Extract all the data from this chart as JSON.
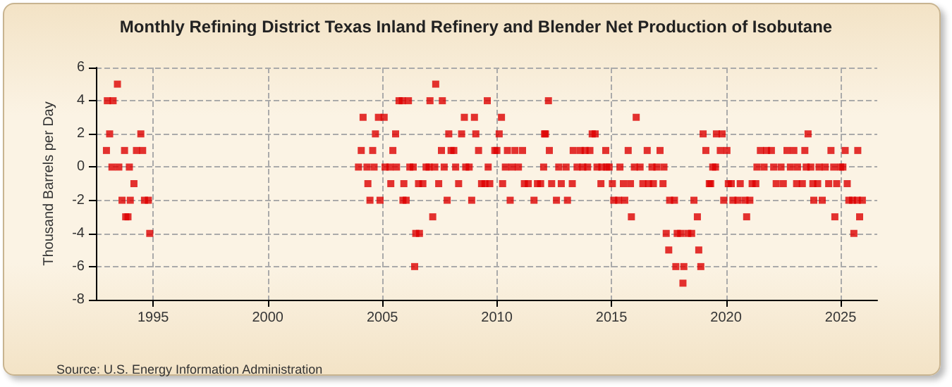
{
  "chart_data": {
    "type": "scatter",
    "title": "Monthly Refining District Texas Inland Refinery and Blender Net Production of Isobutane",
    "ylabel": "Thousand Barrels per Day",
    "annotations": [
      "Source: U.S. Energy Information Administration"
    ],
    "marker": "square",
    "grid": true,
    "xlim": [
      1992.5,
      2026.6
    ],
    "xticks": [
      1995,
      2000,
      2005,
      2010,
      2015,
      2020,
      2025
    ],
    "ylim": [
      -8,
      6
    ],
    "yticks": [
      -8,
      -6,
      -4,
      -2,
      0,
      2,
      4,
      6
    ],
    "series": [
      {
        "color": "#dd0000",
        "x": [
          1992.96,
          1993.0,
          1993.1,
          1993.2,
          1993.25,
          1993.44,
          1993.5,
          1993.64,
          1993.75,
          1993.8,
          1993.9,
          1993.96,
          1994.0,
          1994.16,
          1994.27,
          1994.46,
          1994.54,
          1994.62,
          1994.79,
          1994.85,
          2003.96,
          2004.08,
          2004.16,
          2004.33,
          2004.37,
          2004.46,
          2004.58,
          2004.64,
          2004.7,
          2004.83,
          2004.9,
          2005.08,
          2005.12,
          2005.33,
          2005.37,
          2005.46,
          2005.58,
          2005.62,
          2005.73,
          2005.87,
          2005.9,
          2005.94,
          2006.04,
          2006.14,
          2006.2,
          2006.35,
          2006.41,
          2006.46,
          2006.58,
          2006.62,
          2006.77,
          2006.91,
          2007.04,
          2007.08,
          2007.2,
          2007.29,
          2007.33,
          2007.46,
          2007.58,
          2007.62,
          2007.7,
          2007.83,
          2007.9,
          2008.0,
          2008.12,
          2008.2,
          2008.33,
          2008.46,
          2008.58,
          2008.64,
          2008.79,
          2008.9,
          2009.02,
          2009.08,
          2009.2,
          2009.33,
          2009.48,
          2009.58,
          2009.62,
          2009.69,
          2009.91,
          2010.0,
          2010.1,
          2010.2,
          2010.25,
          2010.37,
          2010.46,
          2010.58,
          2010.66,
          2010.79,
          2010.94,
          2011.12,
          2011.2,
          2011.37,
          2011.62,
          2011.77,
          2011.91,
          2012.04,
          2012.08,
          2012.12,
          2012.25,
          2012.29,
          2012.39,
          2012.6,
          2012.7,
          2012.81,
          2013.02,
          2013.08,
          2013.29,
          2013.33,
          2013.5,
          2013.64,
          2013.75,
          2013.85,
          2013.96,
          2014.06,
          2014.16,
          2014.29,
          2014.37,
          2014.54,
          2014.58,
          2014.75,
          2014.79,
          2014.9,
          2015.04,
          2015.1,
          2015.31,
          2015.37,
          2015.52,
          2015.58,
          2015.73,
          2015.83,
          2015.87,
          2016.0,
          2016.08,
          2016.25,
          2016.37,
          2016.56,
          2016.62,
          2016.77,
          2016.83,
          2016.98,
          2017.12,
          2017.25,
          2017.29,
          2017.39,
          2017.5,
          2017.54,
          2017.75,
          2017.81,
          2017.87,
          2018.02,
          2018.12,
          2018.16,
          2018.33,
          2018.5,
          2018.6,
          2018.75,
          2018.81,
          2018.9,
          2019.0,
          2019.12,
          2019.27,
          2019.33,
          2019.42,
          2019.54,
          2019.58,
          2019.75,
          2019.83,
          2019.9,
          2020.04,
          2020.1,
          2020.23,
          2020.3,
          2020.52,
          2020.62,
          2020.83,
          2020.9,
          2021.04,
          2021.14,
          2021.3,
          2021.35,
          2021.5,
          2021.66,
          2021.77,
          2021.98,
          2022.08,
          2022.19,
          2022.4,
          2022.5,
          2022.66,
          2022.81,
          2022.96,
          2023.08,
          2023.12,
          2023.33,
          2023.44,
          2023.5,
          2023.58,
          2023.7,
          2023.79,
          2023.83,
          2024.0,
          2024.06,
          2024.2,
          2024.33,
          2024.48,
          2024.58,
          2024.7,
          2024.75,
          2024.83,
          2025.0,
          2025.1,
          2025.2,
          2025.29,
          2025.36,
          2025.52,
          2025.58,
          2025.73,
          2025.75,
          2025.83,
          2025.95
        ],
        "values": [
          1,
          4,
          2,
          0,
          4,
          5,
          0,
          -2,
          1,
          -3,
          -3,
          0,
          -2,
          -1,
          1,
          2,
          1,
          -2,
          -2,
          -4,
          0,
          1,
          3,
          0,
          -1,
          -2,
          1,
          0,
          2,
          3,
          -2,
          3,
          0,
          0,
          -1,
          1,
          2,
          0,
          4,
          4,
          -2,
          -1,
          -2,
          4,
          0,
          0,
          -6,
          -4,
          -1,
          -4,
          -1,
          0,
          0,
          4,
          -3,
          0,
          5,
          -1,
          1,
          4,
          0,
          -2,
          2,
          1,
          1,
          0,
          -1,
          2,
          3,
          0,
          0,
          -2,
          3,
          2,
          1,
          -1,
          -1,
          4,
          0,
          -1,
          1,
          1,
          2,
          3,
          -1,
          0,
          1,
          -2,
          0,
          1,
          0,
          1,
          -1,
          -1,
          -2,
          -1,
          -1,
          0,
          2,
          2,
          4,
          1,
          -1,
          -2,
          0,
          -1,
          0,
          -2,
          -1,
          1,
          0,
          1,
          0,
          1,
          0,
          1,
          2,
          2,
          0,
          -1,
          0,
          1,
          0,
          0,
          -1,
          -2,
          -2,
          0,
          -1,
          -2,
          1,
          -1,
          -3,
          0,
          3,
          0,
          -1,
          1,
          -1,
          0,
          -1,
          0,
          1,
          -1,
          0,
          -4,
          -5,
          -2,
          -2,
          -6,
          -4,
          -4,
          -7,
          -6,
          -4,
          -4,
          -2,
          -3,
          -5,
          -6,
          2,
          1,
          -1,
          -1,
          0,
          0,
          2,
          1,
          2,
          -2,
          1,
          -1,
          -1,
          -2,
          -2,
          -1,
          -2,
          -3,
          -2,
          -1,
          -1,
          0,
          1,
          0,
          1,
          1,
          0,
          -1,
          0,
          -1,
          1,
          0,
          1,
          -1,
          0,
          -1,
          1,
          0,
          2,
          0,
          -1,
          -2,
          -1,
          0,
          -2,
          0,
          -1,
          1,
          0,
          -3,
          -1,
          0,
          0,
          1,
          -1,
          -2,
          -2,
          -4,
          -2,
          1,
          -3,
          -2
        ]
      }
    ]
  }
}
